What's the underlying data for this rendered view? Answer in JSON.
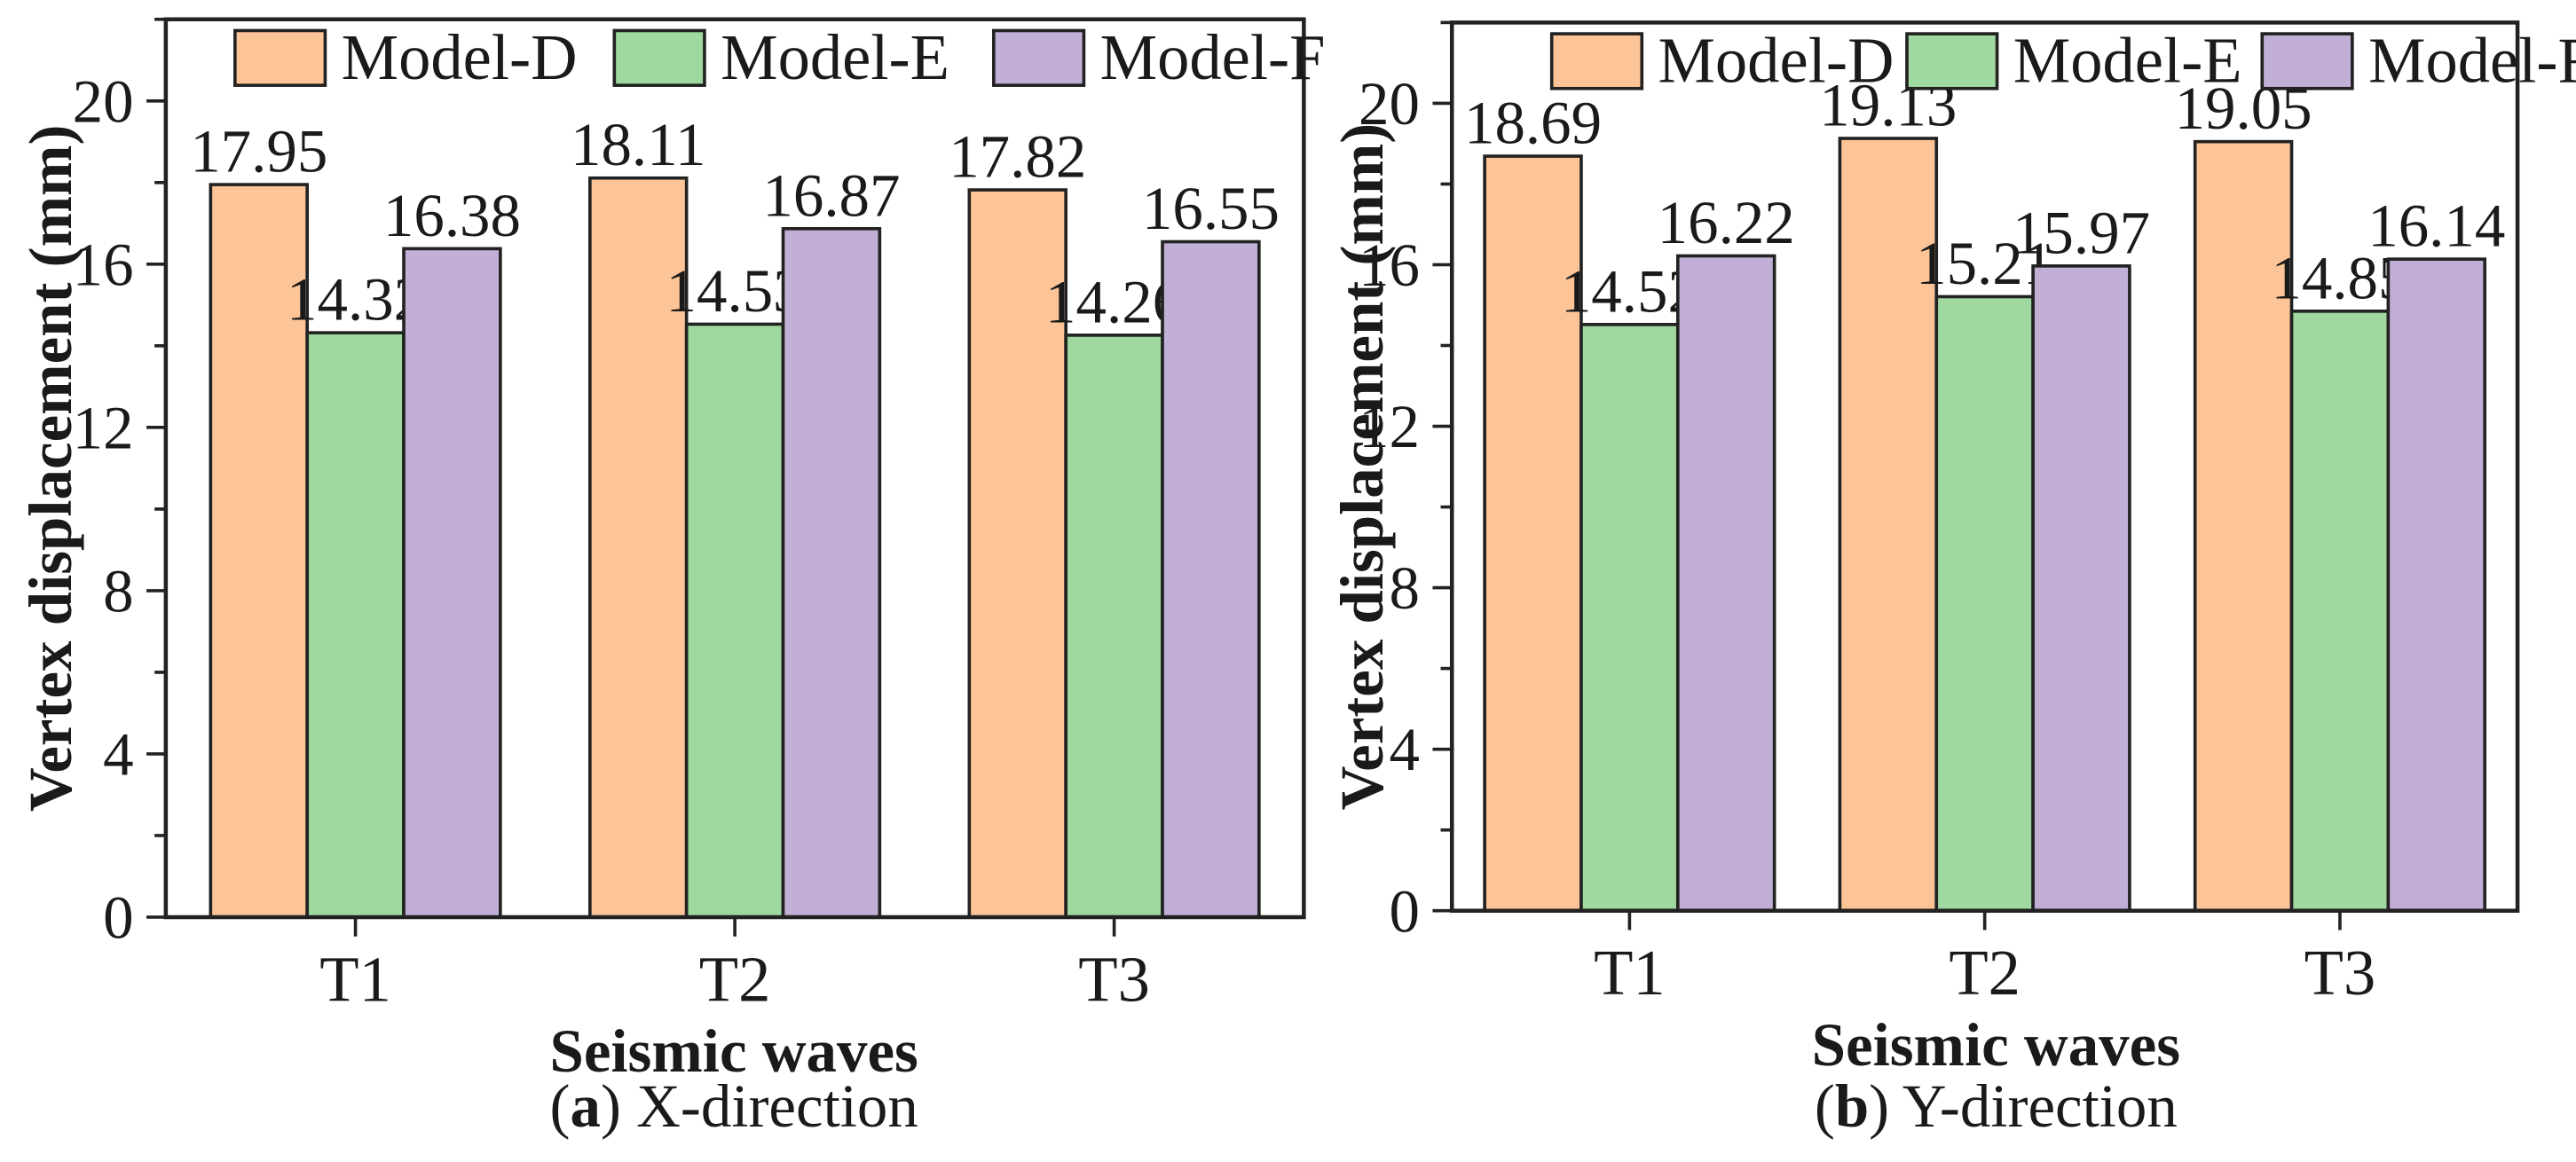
{
  "chart_data": [
    {
      "type": "bar",
      "caption_letter": "a",
      "caption_text": "X-direction",
      "categories": [
        "T1",
        "T2",
        "T3"
      ],
      "series": [
        {
          "name": "Model-D",
          "values": [
            17.95,
            18.11,
            17.82
          ],
          "labels": [
            "17.95",
            "18.11",
            "17.82"
          ]
        },
        {
          "name": "Model-E",
          "values": [
            14.32,
            14.53,
            14.26
          ],
          "labels": [
            "14.32",
            "14.53",
            "14.26"
          ]
        },
        {
          "name": "Model-F",
          "values": [
            16.38,
            16.87,
            16.55
          ],
          "labels": [
            "16.38",
            "16.87",
            "16.55"
          ]
        }
      ],
      "xlabel": "Seismic waves",
      "ylabel": "Vertex displacement (mm)",
      "ylim": [
        0,
        22
      ],
      "yticks": [
        0,
        4,
        8,
        12,
        16,
        20
      ],
      "legend_position": "top"
    },
    {
      "type": "bar",
      "caption_letter": "b",
      "caption_text": "Y-direction",
      "categories": [
        "T1",
        "T2",
        "T3"
      ],
      "series": [
        {
          "name": "Model-D",
          "values": [
            18.69,
            19.13,
            19.05
          ],
          "labels": [
            "18.69",
            "19.13",
            "19.05"
          ]
        },
        {
          "name": "Model-E",
          "values": [
            14.52,
            15.21,
            14.85
          ],
          "labels": [
            "14.52",
            "15.21",
            "14.85"
          ]
        },
        {
          "name": "Model-F",
          "values": [
            16.22,
            15.97,
            16.14
          ],
          "labels": [
            "16.22",
            "15.97",
            "16.14"
          ]
        }
      ],
      "xlabel": "Seismic waves",
      "ylabel": "Vertex displacement (mm)",
      "ylim": [
        0,
        22
      ],
      "yticks": [
        0,
        4,
        8,
        12,
        16,
        20
      ],
      "legend_position": "top"
    }
  ],
  "colors": {
    "Model-D": "#FDC597",
    "Model-E": "#9FD99F",
    "Model-F": "#C1AFD6",
    "axis": "#222222"
  }
}
